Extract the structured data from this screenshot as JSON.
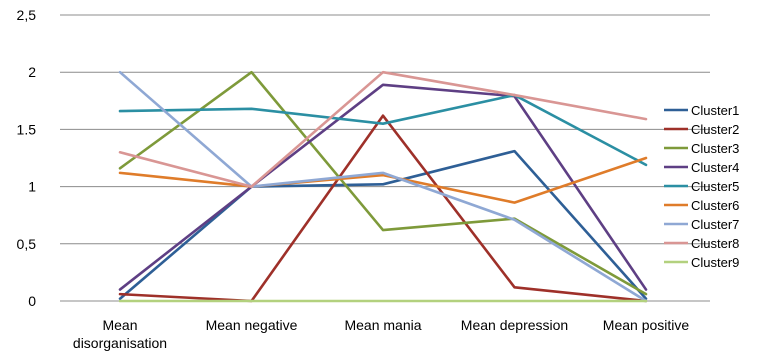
{
  "chart_data": {
    "type": "line",
    "title": "",
    "xlabel": "",
    "ylabel": "",
    "categories": [
      [
        "Mean",
        "disorganisation"
      ],
      [
        "Mean negative"
      ],
      [
        "Mean mania"
      ],
      [
        "Mean depression"
      ],
      [
        "Mean positive"
      ]
    ],
    "ylim": [
      0,
      2.5
    ],
    "yticks": [
      0,
      0.5,
      1,
      1.5,
      2,
      2.5
    ],
    "ytick_labels": [
      "0",
      "0,5",
      "1",
      "1.5",
      "2",
      "2,5"
    ],
    "grid": "horizontal",
    "legend_position": "right",
    "series": [
      {
        "name": "Cluster1",
        "color": "#2e5f96",
        "values": [
          0.02,
          1.0,
          1.02,
          1.31,
          0.02
        ]
      },
      {
        "name": "Cluster2",
        "color": "#9e3029",
        "values": [
          0.06,
          0.0,
          1.62,
          0.12,
          0.0
        ]
      },
      {
        "name": "Cluster3",
        "color": "#7e9a3a",
        "values": [
          1.16,
          2.0,
          0.62,
          0.72,
          0.06
        ]
      },
      {
        "name": "Cluster4",
        "color": "#5e3f84",
        "values": [
          0.1,
          1.0,
          1.89,
          1.79,
          0.1
        ]
      },
      {
        "name": "Cluster5",
        "color": "#2b8fa3",
        "values": [
          1.66,
          1.68,
          1.55,
          1.8,
          1.19
        ]
      },
      {
        "name": "Cluster6",
        "color": "#df7c2a",
        "values": [
          1.12,
          1.0,
          1.1,
          0.86,
          1.25
        ]
      },
      {
        "name": "Cluster7",
        "color": "#8fa8d4",
        "values": [
          2.0,
          1.0,
          1.12,
          0.71,
          0.0
        ]
      },
      {
        "name": "Cluster8",
        "color": "#d99694",
        "values": [
          1.3,
          1.0,
          2.0,
          1.8,
          1.59
        ]
      },
      {
        "name": "Cluster9",
        "color": "#b3d17e",
        "values": [
          0.0,
          0.0,
          0.0,
          0.0,
          0.0
        ]
      }
    ]
  }
}
